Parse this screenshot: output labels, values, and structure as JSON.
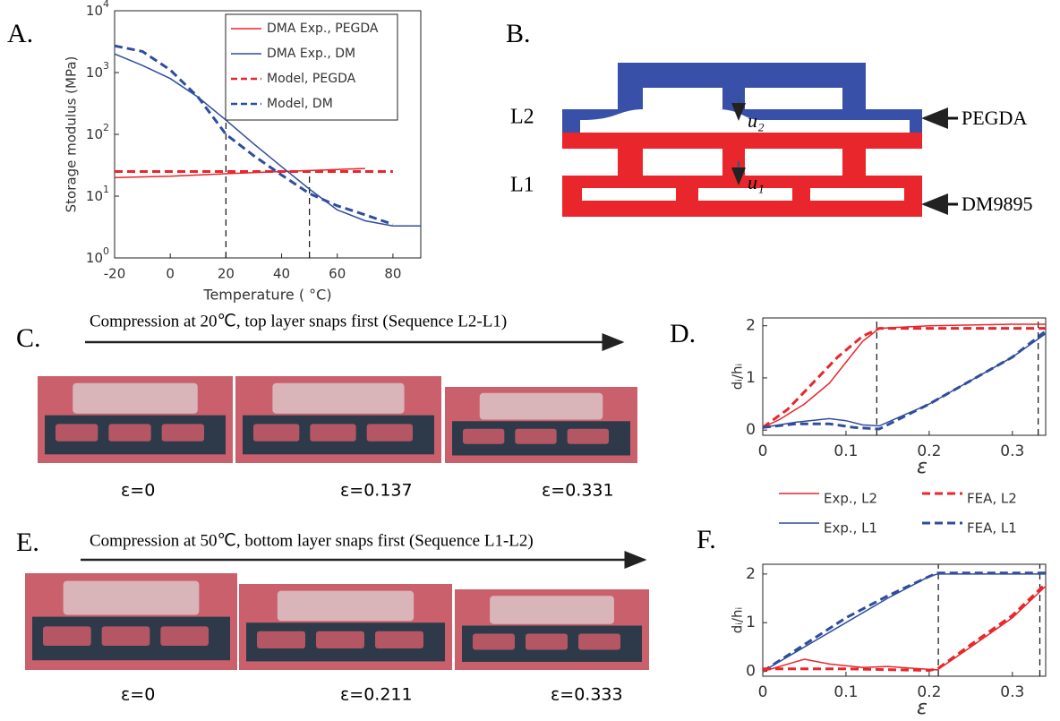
{
  "chart_data": [
    {
      "type": "line",
      "panel": "A.",
      "xlabel": "Temperature ( °C)",
      "ylabel": "Storage modulus (MPa)",
      "xlim": [
        -20,
        90
      ],
      "xticks": [
        -20,
        0,
        20,
        40,
        60,
        80
      ],
      "ylim": [
        1,
        10000
      ],
      "log_y": true,
      "yticks": [
        {
          "value": 1,
          "label": "10^0"
        },
        {
          "value": 10,
          "label": "10^1"
        },
        {
          "value": 100,
          "label": "10^2"
        },
        {
          "value": 1000,
          "label": "10^3"
        },
        {
          "value": 10000,
          "label": "10^4"
        }
      ],
      "legend": "upper right",
      "vlines": [
        {
          "x": 20,
          "ymax": 180
        },
        {
          "x": 50,
          "ymax": 25
        }
      ],
      "series": [
        {
          "name": "DMA Exp., PEGDA",
          "color": "#e8262b",
          "dash": false,
          "x": [
            -20,
            0,
            20,
            40,
            60,
            70
          ],
          "values": [
            20,
            21,
            23,
            25,
            27,
            28
          ]
        },
        {
          "name": "DMA Exp., DM",
          "color": "#2f4d9e",
          "dash": false,
          "x": [
            -20,
            -10,
            0,
            10,
            20,
            30,
            40,
            50,
            60,
            70,
            80,
            90
          ],
          "values": [
            2000,
            1300,
            800,
            400,
            170,
            70,
            30,
            13,
            6,
            4,
            3.3,
            3.3
          ]
        },
        {
          "name": "Model, PEGDA",
          "color": "#e8262b",
          "dash": true,
          "x": [
            -20,
            0,
            20,
            40,
            60,
            80
          ],
          "values": [
            25,
            25,
            25,
            25,
            25,
            25
          ]
        },
        {
          "name": "Model, DM",
          "color": "#2f4d9e",
          "dash": true,
          "x": [
            -20,
            -10,
            0,
            10,
            20,
            30,
            40,
            50,
            60,
            70,
            80
          ],
          "values": [
            2700,
            2200,
            1100,
            400,
            100,
            45,
            22,
            11,
            7,
            5,
            3.5
          ]
        }
      ]
    },
    {
      "type": "line",
      "panel": "D.",
      "xlabel": "ε",
      "ylabel": "dᵢ/hᵢ",
      "xlim": [
        0,
        0.34
      ],
      "xticks": [
        0,
        0.1,
        0.2,
        0.3
      ],
      "ylim": [
        -0.1,
        2.15
      ],
      "yticks": [
        0,
        1,
        2
      ],
      "legend": "below",
      "vlines": [
        {
          "x": 0.137,
          "ymax": 2.15
        },
        {
          "x": 0.331,
          "ymax": 2.15
        }
      ],
      "series": [
        {
          "name": "Exp., L2",
          "color": "#e8262b",
          "dash": false,
          "x": [
            0,
            0.02,
            0.05,
            0.08,
            0.1,
            0.12,
            0.14,
            0.2,
            0.3,
            0.34
          ],
          "values": [
            0.05,
            0.2,
            0.5,
            0.9,
            1.3,
            1.7,
            1.95,
            2.0,
            2.03,
            2.03
          ]
        },
        {
          "name": "FEA, L2",
          "color": "#e8262b",
          "dash": true,
          "x": [
            0,
            0.03,
            0.06,
            0.09,
            0.12,
            0.14,
            0.2,
            0.34
          ],
          "values": [
            0.05,
            0.4,
            0.9,
            1.4,
            1.8,
            1.95,
            1.95,
            1.95
          ]
        },
        {
          "name": "Exp., L1",
          "color": "#2f4d9e",
          "dash": false,
          "x": [
            0,
            0.04,
            0.08,
            0.1,
            0.12,
            0.14,
            0.2,
            0.25,
            0.3,
            0.34
          ],
          "values": [
            0.05,
            0.15,
            0.22,
            0.18,
            0.1,
            0.08,
            0.5,
            0.95,
            1.4,
            1.85
          ]
        },
        {
          "name": "FEA, L1",
          "color": "#2f4d9e",
          "dash": true,
          "x": [
            0,
            0.04,
            0.08,
            0.11,
            0.14,
            0.2,
            0.25,
            0.3,
            0.34
          ],
          "values": [
            0.05,
            0.12,
            0.12,
            0.05,
            0.02,
            0.5,
            0.95,
            1.4,
            1.9
          ]
        }
      ]
    },
    {
      "type": "line",
      "panel": "F.",
      "xlabel": "ε",
      "ylabel": "dᵢ/hᵢ",
      "xlim": [
        0,
        0.34
      ],
      "xticks": [
        0,
        0.1,
        0.2,
        0.3
      ],
      "ylim": [
        -0.1,
        2.2
      ],
      "yticks": [
        0,
        1,
        2
      ],
      "vlines": [
        {
          "x": 0.211,
          "ymax": 2.2
        },
        {
          "x": 0.333,
          "ymax": 2.2
        }
      ],
      "series": [
        {
          "color": "#2f4d9e",
          "dash": false,
          "x": [
            0,
            0.05,
            0.1,
            0.15,
            0.2,
            0.21,
            0.34
          ],
          "values": [
            0,
            0.5,
            1.0,
            1.5,
            1.95,
            2.0,
            2.0
          ]
        },
        {
          "color": "#2f4d9e",
          "dash": true,
          "x": [
            0,
            0.05,
            0.1,
            0.15,
            0.2,
            0.21,
            0.34
          ],
          "values": [
            0,
            0.55,
            1.1,
            1.55,
            1.95,
            2.02,
            2.02
          ]
        },
        {
          "color": "#e8262b",
          "dash": false,
          "x": [
            0,
            0.05,
            0.08,
            0.12,
            0.15,
            0.19,
            0.21,
            0.25,
            0.3,
            0.34
          ],
          "values": [
            0,
            0.25,
            0.15,
            0.08,
            0.1,
            0.05,
            0.03,
            0.5,
            1.1,
            1.75
          ]
        },
        {
          "color": "#e8262b",
          "dash": true,
          "x": [
            0,
            0.1,
            0.2,
            0.21,
            0.25,
            0.3,
            0.34
          ],
          "values": [
            0.05,
            0.05,
            0.02,
            0.05,
            0.55,
            1.15,
            1.8
          ]
        }
      ]
    }
  ],
  "diagram": {
    "panel": "B.",
    "labels": [
      "L2",
      "L1"
    ],
    "u2": "u₂",
    "u1": "u₁",
    "materials": [
      "PEGDA",
      "DM9895"
    ]
  },
  "photos": [
    {
      "panel": "C.",
      "caption": "Compression at 20℃, top layer snaps first (Sequence L2-L1)",
      "strains": [
        "ε=0",
        "ε=0.137",
        "ε=0.331"
      ]
    },
    {
      "panel": "E.",
      "caption": "Compression at 50℃, bottom layer snaps first (Sequence L1-L2)",
      "strains": [
        "ε=0",
        "ε=0.211",
        "ε=0.333"
      ]
    }
  ]
}
